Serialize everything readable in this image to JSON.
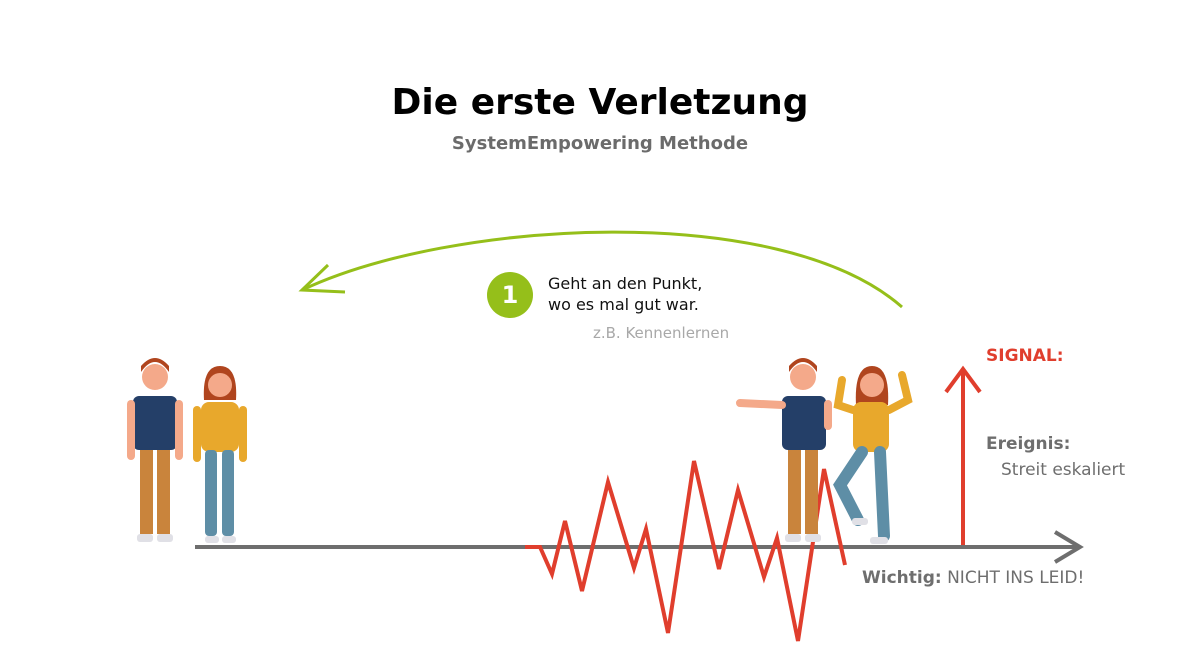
{
  "header": {
    "title": "Die erste Verletzung",
    "subtitle": "SystemEmpowering Methode"
  },
  "step": {
    "number": "1",
    "line1": "Geht an den Punkt,",
    "line2": "wo es mal gut war.",
    "example": "z.B. Kennenlernen"
  },
  "signal": {
    "label": "SIGNAL:"
  },
  "event": {
    "label": "Ereignis:",
    "value": "Streit eskaliert"
  },
  "note": {
    "label": "Wichtig:",
    "text": "NICHT INS LEID!"
  },
  "colors": {
    "accent_green": "#95bf1a",
    "signal_red": "#e03e2d",
    "axis_gray": "#6e6e6e"
  }
}
